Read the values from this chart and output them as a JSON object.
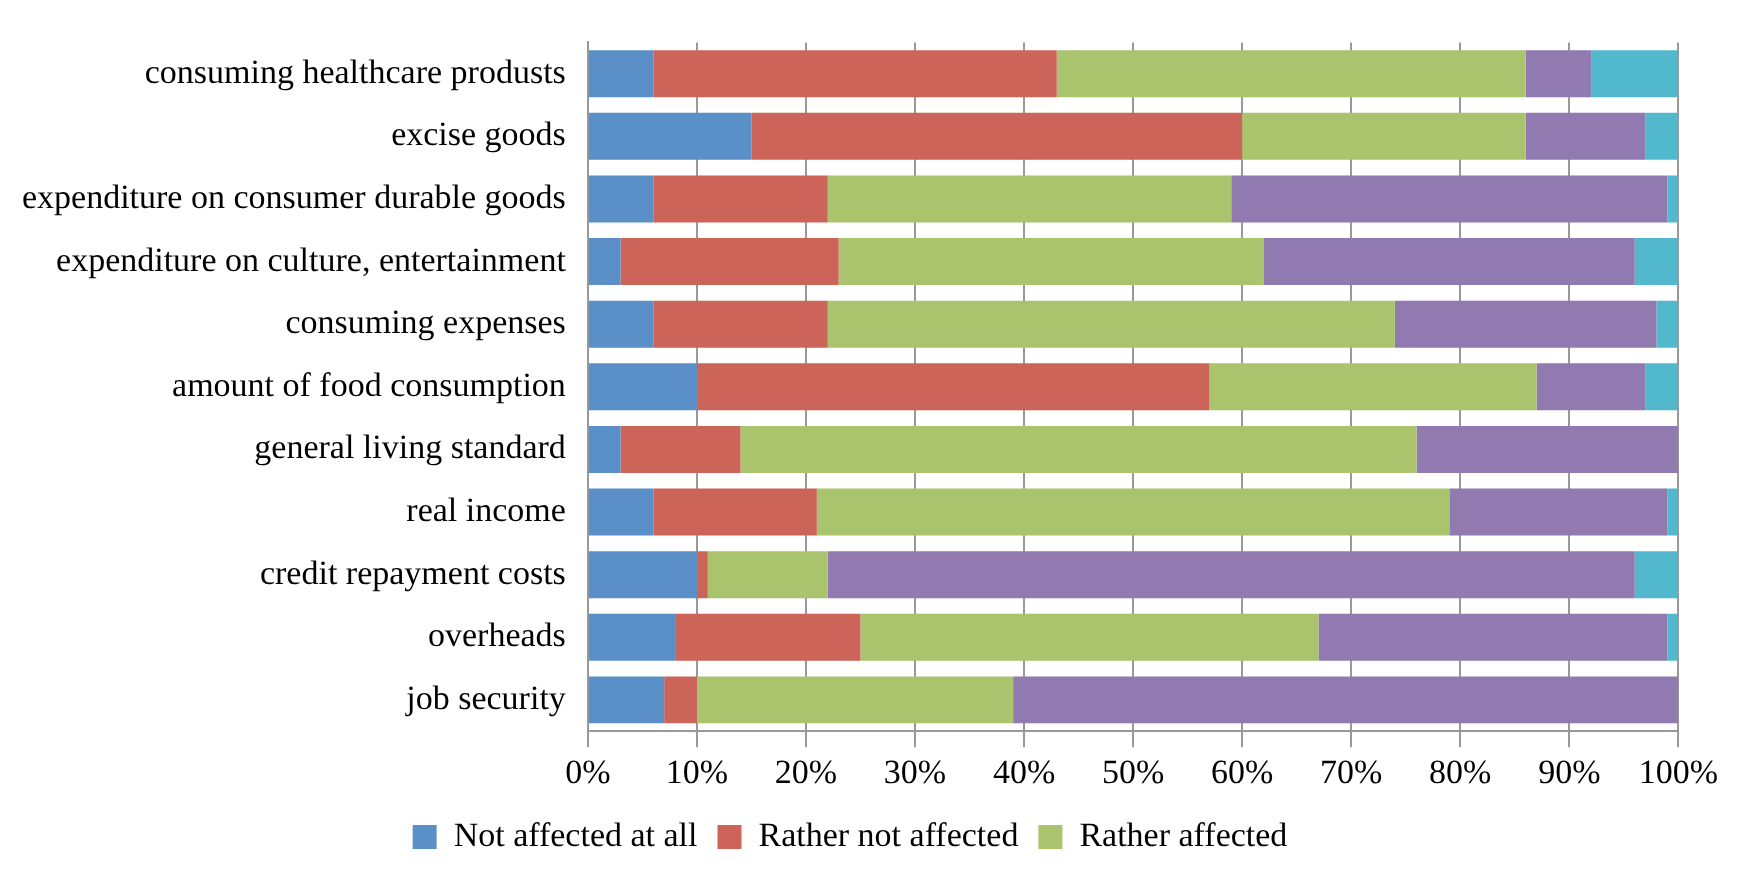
{
  "chart_data": {
    "type": "bar",
    "orientation": "horizontal",
    "stacked": true,
    "categories": [
      "consuming healthcare produsts",
      "excise goods",
      "expenditure on consumer durable goods",
      "expenditure on culture, entertainment",
      "consuming expenses",
      "amount of food consumption",
      "general living standard",
      "real income",
      "credit repayment costs",
      "overheads",
      "job security"
    ],
    "series": [
      {
        "name": "Not affected at all",
        "color": "#5b8fc7",
        "values": [
          6,
          15,
          6,
          3,
          6,
          10,
          3,
          6,
          10,
          8,
          7
        ]
      },
      {
        "name": "Rather not affected",
        "color": "#cc6459",
        "values": [
          37,
          45,
          16,
          20,
          16,
          47,
          11,
          15,
          1,
          17,
          3
        ]
      },
      {
        "name": "Rather affected",
        "color": "#a9c46c",
        "values": [
          43,
          26,
          37,
          39,
          52,
          30,
          62,
          58,
          11,
          42,
          29
        ]
      },
      {
        "color": "#907ab0",
        "values": [
          6,
          11,
          40,
          34,
          24,
          10,
          24,
          20,
          74,
          32,
          61
        ]
      },
      {
        "color": "#52b8ce",
        "values": [
          8,
          3,
          1,
          4,
          2,
          3,
          0,
          1,
          4,
          1,
          0
        ]
      }
    ],
    "xlim": [
      0,
      100
    ],
    "xticks": [
      {
        "value": 0,
        "label": "0%"
      },
      {
        "value": 10,
        "label": "10%"
      },
      {
        "value": 20,
        "label": "20%"
      },
      {
        "value": 30,
        "label": "30%"
      },
      {
        "value": 40,
        "label": "40%"
      },
      {
        "value": 50,
        "label": "50%"
      },
      {
        "value": 60,
        "label": "60%"
      },
      {
        "value": 70,
        "label": "70%"
      },
      {
        "value": 80,
        "label": "80%"
      },
      {
        "value": 90,
        "label": "90%"
      },
      {
        "value": 100,
        "label": "100%"
      }
    ],
    "grid": "x",
    "legend": "bottom"
  }
}
